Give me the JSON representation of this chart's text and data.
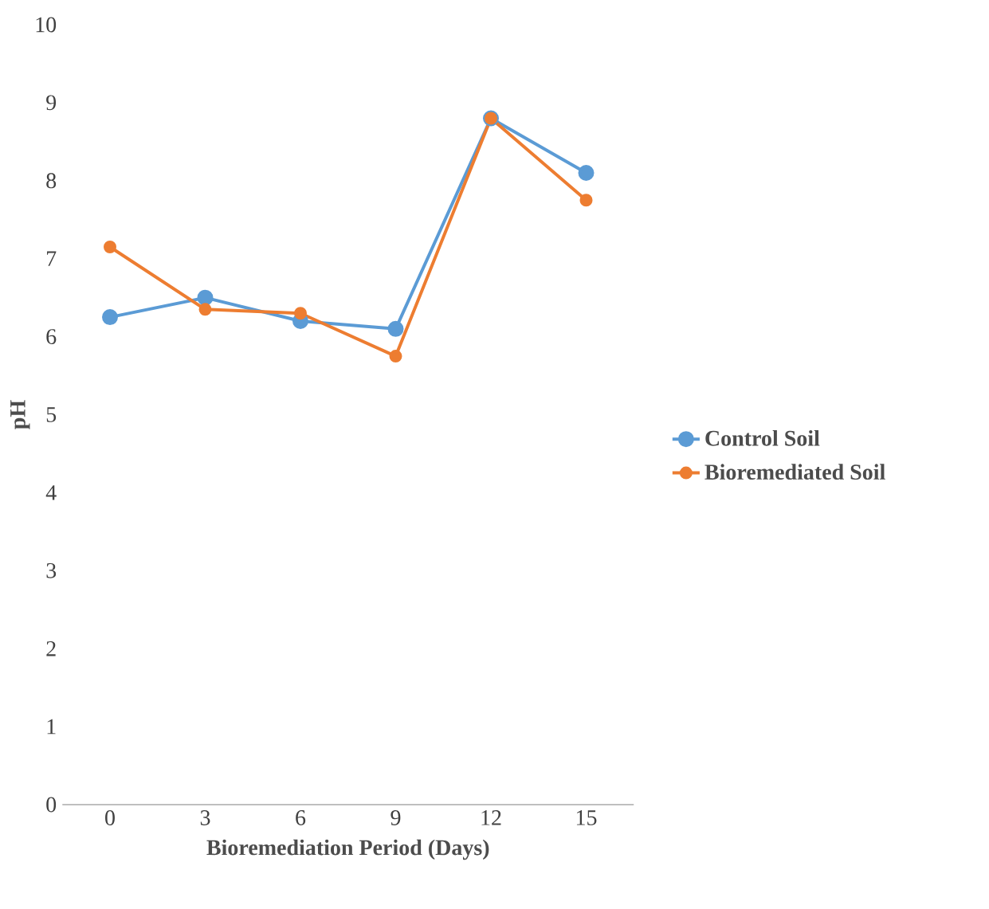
{
  "chart_data": {
    "type": "line",
    "categories": [
      "0",
      "3",
      "6",
      "9",
      "12",
      "15"
    ],
    "series": [
      {
        "name": "Control Soil",
        "color": "#5b9bd5",
        "values": [
          6.25,
          6.5,
          6.2,
          6.1,
          8.8,
          8.1
        ]
      },
      {
        "name": "Bioremediated Soil",
        "color": "#ed7d31",
        "values": [
          7.15,
          6.35,
          6.3,
          5.75,
          8.8,
          7.75
        ]
      }
    ],
    "xlabel": "Bioremediation Period (Days)",
    "ylabel": "pH",
    "ylim": [
      0,
      10
    ],
    "yticks": [
      0,
      1,
      2,
      3,
      4,
      5,
      6,
      7,
      8,
      9,
      10
    ],
    "legend": "right",
    "marker": "circle",
    "line_style": "solid"
  }
}
